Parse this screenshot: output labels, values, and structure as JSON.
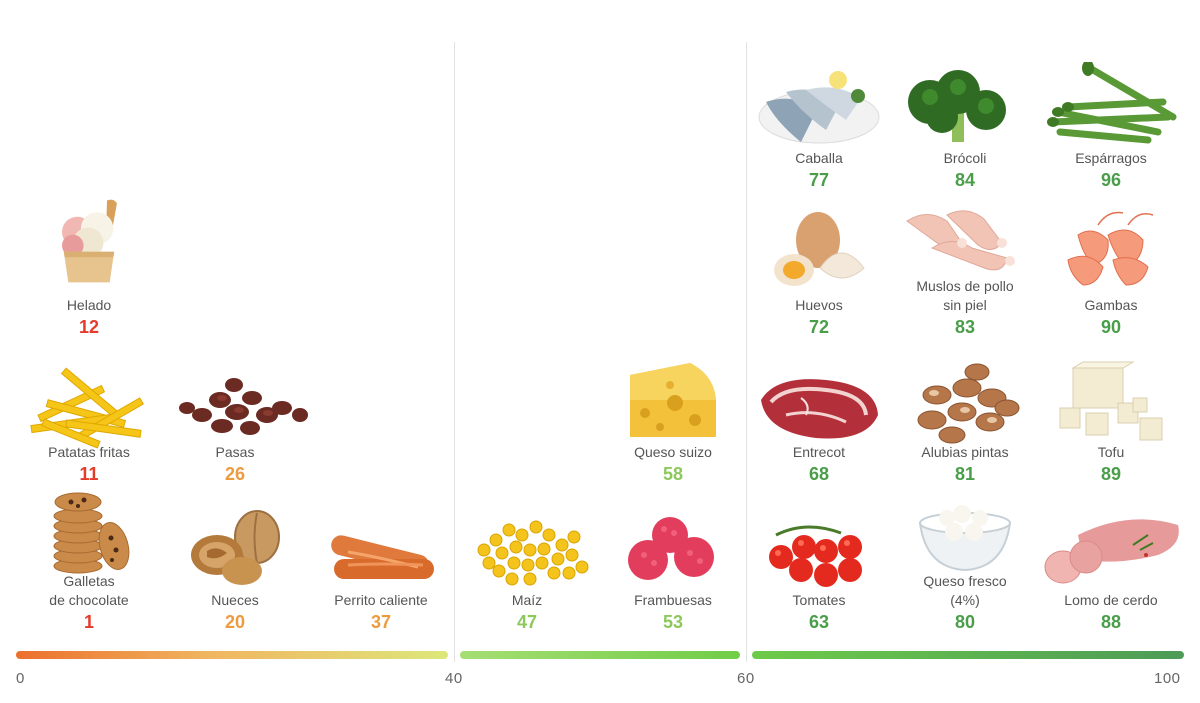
{
  "colors": {
    "red": "#e53b2b",
    "orange": "#ee9a3f",
    "lightgreen": "#8cc85a",
    "green": "#4a9e4a"
  },
  "scale": {
    "ticks": [
      "0",
      "40",
      "60",
      "100"
    ]
  },
  "foods": {
    "helado": {
      "name": "Helado",
      "score": "12",
      "icon": "ice-cream-icon"
    },
    "patatas": {
      "name": "Patatas fritas",
      "score": "11",
      "icon": "fries-icon"
    },
    "pasas": {
      "name": "Pasas",
      "score": "26",
      "icon": "raisins-icon"
    },
    "galletas": {
      "name1": "Galletas",
      "name2": "de chocolate",
      "score": "1",
      "icon": "cookies-icon"
    },
    "nueces": {
      "name": "Nueces",
      "score": "20",
      "icon": "walnuts-icon"
    },
    "perrito": {
      "name": "Perrito caliente",
      "score": "37",
      "icon": "sausage-icon"
    },
    "queso_suizo": {
      "name": "Queso suizo",
      "score": "58",
      "icon": "swiss-cheese-icon"
    },
    "maiz": {
      "name": "Maíz",
      "score": "47",
      "icon": "corn-icon"
    },
    "frambuesas": {
      "name": "Frambuesas",
      "score": "53",
      "icon": "raspberries-icon"
    },
    "caballa": {
      "name": "Caballa",
      "score": "77",
      "icon": "mackerel-icon"
    },
    "brocoli": {
      "name": "Brócoli",
      "score": "84",
      "icon": "broccoli-icon"
    },
    "esparragos": {
      "name": "Espárragos",
      "score": "96",
      "icon": "asparagus-icon"
    },
    "huevos": {
      "name": "Huevos",
      "score": "72",
      "icon": "eggs-icon"
    },
    "muslos": {
      "name1": "Muslos de pollo",
      "name2": "sin piel",
      "score": "83",
      "icon": "chicken-legs-icon"
    },
    "gambas": {
      "name": "Gambas",
      "score": "90",
      "icon": "shrimp-icon"
    },
    "entrecot": {
      "name": "Entrecot",
      "score": "68",
      "icon": "steak-icon"
    },
    "alubias": {
      "name": "Alubias pintas",
      "score": "81",
      "icon": "beans-icon"
    },
    "tofu": {
      "name": "Tofu",
      "score": "89",
      "icon": "tofu-icon"
    },
    "tomates": {
      "name": "Tomates",
      "score": "63",
      "icon": "tomatoes-icon"
    },
    "queso_fresco": {
      "name1": "Queso fresco",
      "name2": "(4%)",
      "score": "80",
      "icon": "cottage-cheese-icon"
    },
    "lomo": {
      "name": "Lomo de cerdo",
      "score": "88",
      "icon": "pork-loin-icon"
    }
  }
}
